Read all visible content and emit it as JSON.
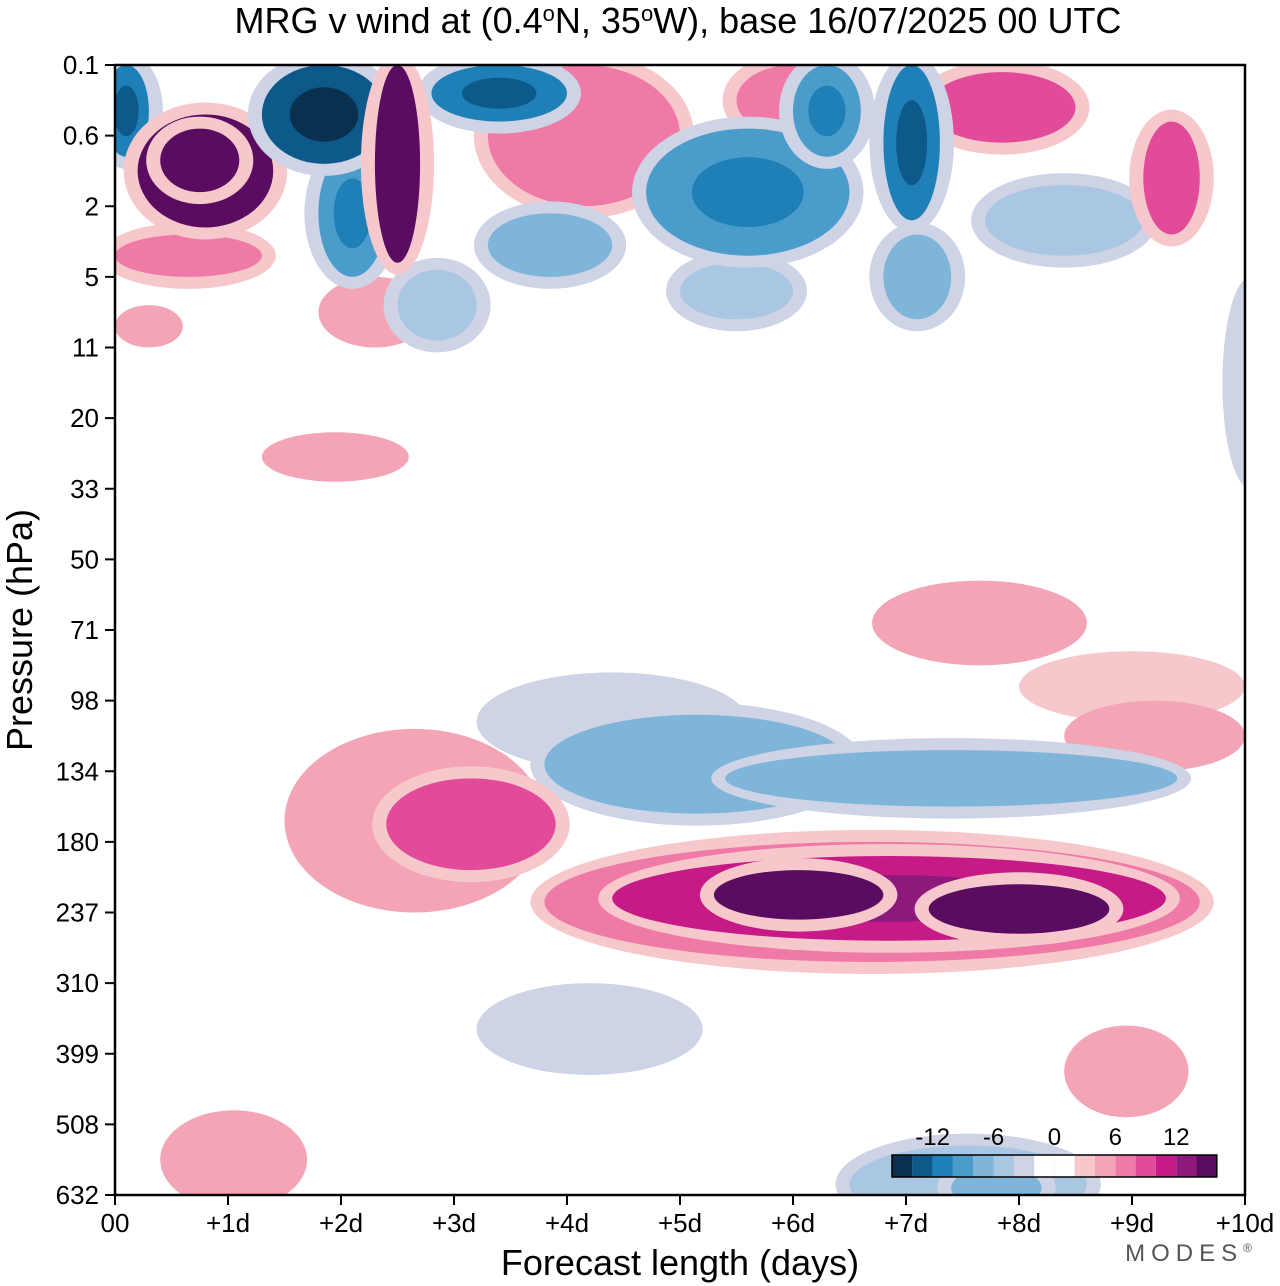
{
  "chart_data": {
    "type": "heatmap",
    "title_parts": [
      "MRG v wind at (0.4",
      "o",
      "N, 35",
      "o",
      "W),  base 16/07/2025  00 UTC"
    ],
    "xlabel": "Forecast length (days)",
    "ylabel": "Pressure (hPa)",
    "x_ticks": [
      "00",
      "+1d",
      "+2d",
      "+3d",
      "+4d",
      "+5d",
      "+6d",
      "+7d",
      "+8d",
      "+9d",
      "+10d"
    ],
    "xlim_days": [
      0,
      10
    ],
    "y_ticks": [
      "0.1",
      "0.6",
      "2",
      "5",
      "11",
      "20",
      "33",
      "50",
      "71",
      "98",
      "134",
      "180",
      "237",
      "310",
      "399",
      "508",
      "632"
    ],
    "y_scale": "categorical (top to bottom)",
    "colorbar": {
      "labels": [
        "-12",
        "-6",
        "0",
        "6",
        "12"
      ],
      "label_values": [
        -12,
        -6,
        0,
        6,
        12
      ],
      "levels": [
        -16,
        -14,
        -12,
        -10,
        -8,
        -6,
        -4,
        -2,
        0,
        2,
        4,
        6,
        8,
        10,
        12,
        14,
        16
      ],
      "colors": [
        "#0a3050",
        "#0d5a8a",
        "#1f80b8",
        "#4a9ccb",
        "#7eb5d8",
        "#a9c6e2",
        "#cfd3e6",
        "#ffffff",
        "#ffffff",
        "#f7c8cb",
        "#f3a5b6",
        "#f07aa7",
        "#e24b9a",
        "#c61a86",
        "#8c1a7d",
        "#5a0c60"
      ]
    },
    "features": [
      {
        "x0": -0.1,
        "x1": 0.3,
        "y0": 0.0,
        "y1": 1.3,
        "level": -12
      },
      {
        "x0": 0.2,
        "x1": 1.4,
        "y0": 0.7,
        "y1": 2.3,
        "level": 14
      },
      {
        "x0": 0.4,
        "x1": 1.1,
        "y0": 0.9,
        "y1": 1.8,
        "level": 16
      },
      {
        "x0": 0.0,
        "x1": 1.3,
        "y0": 2.4,
        "y1": 3.0,
        "level": 6
      },
      {
        "x0": 1.3,
        "x1": 2.4,
        "y0": 0.0,
        "y1": 1.4,
        "level": -14
      },
      {
        "x0": 1.8,
        "x1": 2.4,
        "y0": 1.2,
        "y1": 3.0,
        "level": -10
      },
      {
        "x0": 2.3,
        "x1": 2.7,
        "y0": 0.0,
        "y1": 2.8,
        "level": 14
      },
      {
        "x0": 2.8,
        "x1": 4.0,
        "y0": 0.0,
        "y1": 0.8,
        "level": -12
      },
      {
        "x0": 3.3,
        "x1": 5.0,
        "y0": 0.0,
        "y1": 2.0,
        "level": 6
      },
      {
        "x0": 3.3,
        "x1": 4.4,
        "y0": 2.1,
        "y1": 3.0,
        "level": -8
      },
      {
        "x0": 4.7,
        "x1": 6.5,
        "y0": 0.9,
        "y1": 2.7,
        "level": -10
      },
      {
        "x0": 5.5,
        "x1": 6.5,
        "y0": 0.0,
        "y1": 1.0,
        "level": 6
      },
      {
        "x0": 6.0,
        "x1": 6.6,
        "y0": 0.0,
        "y1": 1.3,
        "level": -10
      },
      {
        "x0": 6.8,
        "x1": 7.3,
        "y0": 0.0,
        "y1": 2.2,
        "level": -12
      },
      {
        "x0": 7.2,
        "x1": 8.5,
        "y0": 0.1,
        "y1": 1.1,
        "level": 8
      },
      {
        "x0": 7.7,
        "x1": 9.1,
        "y0": 1.7,
        "y1": 2.7,
        "level": -6
      },
      {
        "x0": 9.1,
        "x1": 9.6,
        "y0": 0.8,
        "y1": 2.4,
        "level": 8
      },
      {
        "x0": 5.0,
        "x1": 6.0,
        "y0": 2.8,
        "y1": 3.6,
        "level": -6
      },
      {
        "x0": 6.8,
        "x1": 7.4,
        "y0": 2.4,
        "y1": 3.6,
        "level": -8
      },
      {
        "x0": 2.5,
        "x1": 3.2,
        "y0": 2.9,
        "y1": 3.9,
        "level": -6
      },
      {
        "x0": 1.8,
        "x1": 2.8,
        "y0": 3.0,
        "y1": 4.0,
        "level": 4
      },
      {
        "x0": 0.0,
        "x1": 0.6,
        "y0": 3.4,
        "y1": 4.0,
        "level": 4
      },
      {
        "x0": 1.3,
        "x1": 2.6,
        "y0": 5.2,
        "y1": 5.9,
        "level": 4
      },
      {
        "x0": 9.8,
        "x1": 10.3,
        "y0": 3.0,
        "y1": 6.0,
        "level": -4
      },
      {
        "x0": 6.7,
        "x1": 8.6,
        "y0": 7.3,
        "y1": 8.5,
        "level": 4
      },
      {
        "x0": 8.0,
        "x1": 10.0,
        "y0": 8.3,
        "y1": 9.3,
        "level": 2
      },
      {
        "x0": 8.4,
        "x1": 10.0,
        "y0": 9.0,
        "y1": 10.0,
        "level": 4
      },
      {
        "x0": 3.2,
        "x1": 5.6,
        "y0": 8.6,
        "y1": 10.0,
        "level": -4
      },
      {
        "x0": 3.8,
        "x1": 6.5,
        "y0": 9.2,
        "y1": 10.6,
        "level": -8
      },
      {
        "x0": 5.4,
        "x1": 9.4,
        "y0": 9.7,
        "y1": 10.5,
        "level": -8
      },
      {
        "x0": 1.5,
        "x1": 3.8,
        "y0": 9.4,
        "y1": 12.0,
        "level": 4
      },
      {
        "x0": 2.4,
        "x1": 3.9,
        "y0": 10.1,
        "y1": 11.4,
        "level": 8
      },
      {
        "x0": 3.8,
        "x1": 9.6,
        "y0": 11.0,
        "y1": 12.7,
        "level": 6
      },
      {
        "x0": 4.4,
        "x1": 9.3,
        "y0": 11.2,
        "y1": 12.4,
        "level": 10
      },
      {
        "x0": 5.3,
        "x1": 6.8,
        "y0": 11.4,
        "y1": 12.1,
        "level": 14
      },
      {
        "x0": 7.2,
        "x1": 8.8,
        "y0": 11.6,
        "y1": 12.3,
        "level": 14
      },
      {
        "x0": 3.2,
        "x1": 5.2,
        "y0": 13.0,
        "y1": 14.3,
        "level": -4
      },
      {
        "x0": 6.5,
        "x1": 8.6,
        "y0": 15.3,
        "y1": 16.4,
        "level": -6
      },
      {
        "x0": 7.4,
        "x1": 8.2,
        "y0": 15.6,
        "y1": 16.2,
        "level": -8
      },
      {
        "x0": 0.4,
        "x1": 1.7,
        "y0": 14.8,
        "y1": 16.2,
        "level": 4
      },
      {
        "x0": 8.4,
        "x1": 9.5,
        "y0": 13.6,
        "y1": 14.9,
        "level": 4
      }
    ]
  },
  "brand": {
    "name": "MODES",
    "mark": "®"
  }
}
